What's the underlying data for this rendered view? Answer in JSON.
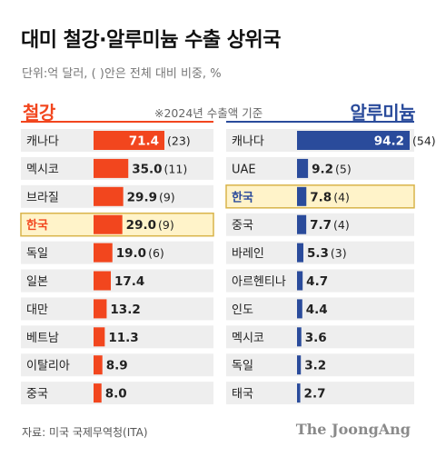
{
  "title": "대미 철강·알루미늄 수출 상위국",
  "subtitle": "단위:억 달러, ( )안은 전체 대비 비중, %",
  "note": "※2024년 수출액 기준",
  "source": "자료: 미국 국제무역청(ITA)",
  "brand": "The JoongAng",
  "colors": {
    "steel": "#f2461e",
    "aluminum": "#2a4b9b",
    "highlight_bg": "#fff3c9",
    "highlight_border": "#d9b44a",
    "row_bg": "#eeeeee"
  },
  "chart_data": [
    {
      "type": "bar",
      "orientation": "horizontal",
      "title": "철강",
      "title_color": "#f2461e",
      "highlight": "한국",
      "xlim": [
        0,
        71.4
      ],
      "categories": [
        "캐나다",
        "멕시코",
        "브라질",
        "한국",
        "독일",
        "일본",
        "대만",
        "베트남",
        "이탈리아",
        "중국"
      ],
      "values": [
        71.4,
        35.0,
        29.9,
        29.0,
        19.0,
        17.4,
        13.2,
        11.3,
        8.9,
        8.0
      ],
      "value_labels": [
        "71.4",
        "35.0",
        "29.9",
        "29.0",
        "19.0",
        "17.4",
        "13.2",
        "11.3",
        "8.9",
        "8.0"
      ],
      "shares": [
        "(23)",
        "(11)",
        "(9)",
        "(9)",
        "(6)",
        "",
        "",
        "",
        "",
        ""
      ]
    },
    {
      "type": "bar",
      "orientation": "horizontal",
      "title": "알루미늄",
      "title_color": "#2a4b9b",
      "highlight": "한국",
      "xlim": [
        0,
        94.2
      ],
      "categories": [
        "캐나다",
        "UAE",
        "한국",
        "중국",
        "바레인",
        "아르헨티나",
        "인도",
        "멕시코",
        "독일",
        "태국"
      ],
      "values": [
        94.2,
        9.2,
        7.8,
        7.7,
        5.3,
        4.7,
        4.4,
        3.6,
        3.2,
        2.7
      ],
      "value_labels": [
        "94.2",
        "9.2",
        "7.8",
        "7.7",
        "5.3",
        "4.7",
        "4.4",
        "3.6",
        "3.2",
        "2.7"
      ],
      "shares": [
        "(54)",
        "(5)",
        "(4)",
        "(4)",
        "(3)",
        "",
        "",
        "",
        "",
        ""
      ]
    }
  ]
}
